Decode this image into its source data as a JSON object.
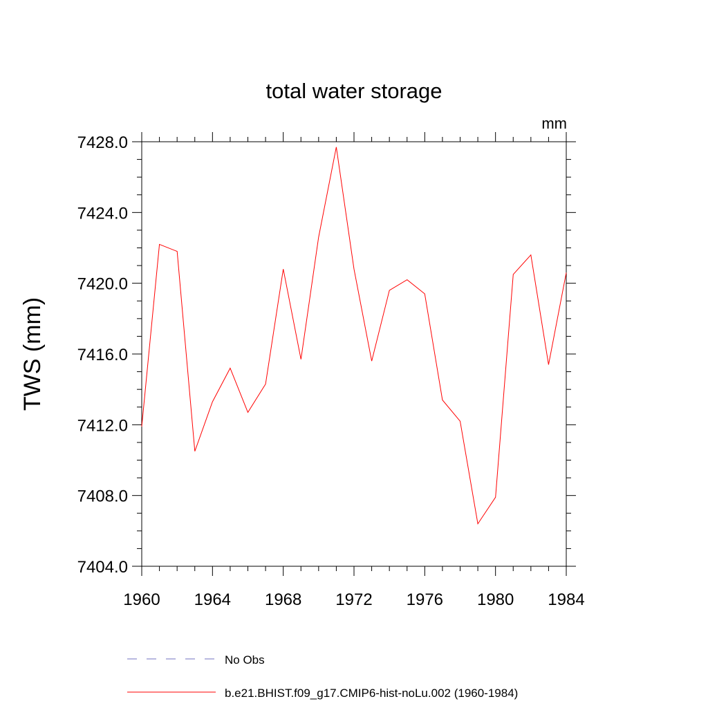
{
  "chart_data": {
    "type": "line",
    "title": "total water storage",
    "units_label": "mm",
    "xlabel": "",
    "ylabel": "TWS  (mm)",
    "xlim": [
      1960,
      1984
    ],
    "ylim": [
      7404.0,
      7428.0
    ],
    "x_ticks": [
      1960,
      1964,
      1968,
      1972,
      1976,
      1980,
      1984
    ],
    "x_tick_labels": [
      "1960",
      "1964",
      "1968",
      "1972",
      "1976",
      "1980",
      "1984"
    ],
    "y_ticks": [
      7404,
      7408,
      7412,
      7416,
      7420,
      7424,
      7428
    ],
    "y_tick_labels": [
      "7404.0",
      "7408.0",
      "7412.0",
      "7416.0",
      "7420.0",
      "7424.0",
      "7428.0"
    ],
    "series": [
      {
        "name": "b.e21.BHIST.f09_g17.CMIP6-hist-noLu.002 (1960-1984)",
        "color": "#ff0000",
        "style": "solid",
        "x": [
          1960,
          1961,
          1962,
          1963,
          1964,
          1965,
          1966,
          1967,
          1968,
          1969,
          1970,
          1971,
          1972,
          1973,
          1974,
          1975,
          1976,
          1977,
          1978,
          1979,
          1980,
          1981,
          1982,
          1983,
          1984
        ],
        "values": [
          7411.9,
          7422.2,
          7421.8,
          7410.5,
          7413.3,
          7415.2,
          7412.7,
          7414.3,
          7420.8,
          7415.7,
          7422.6,
          7427.7,
          7420.8,
          7415.6,
          7419.6,
          7420.2,
          7419.4,
          7413.4,
          7412.2,
          7406.4,
          7407.9,
          7420.5,
          7421.6,
          7415.4,
          7420.6
        ]
      }
    ],
    "legend": [
      {
        "label": "No Obs",
        "color": "#7070c0",
        "style": "dashed"
      },
      {
        "label": "b.e21.BHIST.f09_g17.CMIP6-hist-noLu.002 (1960-1984)",
        "color": "#ff0000",
        "style": "solid"
      }
    ],
    "legend_position": "bottom"
  }
}
